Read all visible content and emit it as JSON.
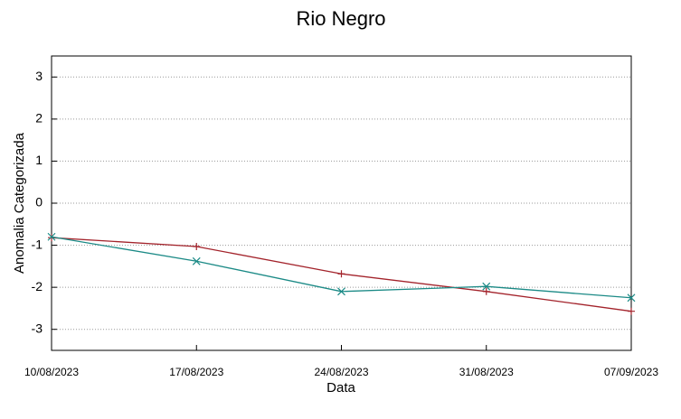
{
  "chart_data": {
    "type": "line",
    "title": "Rio Negro",
    "xlabel": "Data",
    "ylabel": "Anomalia Categorizada",
    "categories": [
      "10/08/2023",
      "17/08/2023",
      "24/08/2023",
      "31/08/2023",
      "07/09/2023"
    ],
    "series": [
      {
        "color": "#a3232b",
        "marker": "plus",
        "values": [
          -0.82,
          -1.03,
          -1.68,
          -2.1,
          -2.57
        ]
      },
      {
        "color": "#1b8a86",
        "marker": "x",
        "values": [
          -0.8,
          -1.38,
          -2.1,
          -1.98,
          -2.25
        ]
      }
    ],
    "ylim": [
      -3.5,
      3.5
    ],
    "yticks": [
      -3,
      -2,
      -1,
      0,
      1,
      2,
      3
    ],
    "grid": true
  }
}
